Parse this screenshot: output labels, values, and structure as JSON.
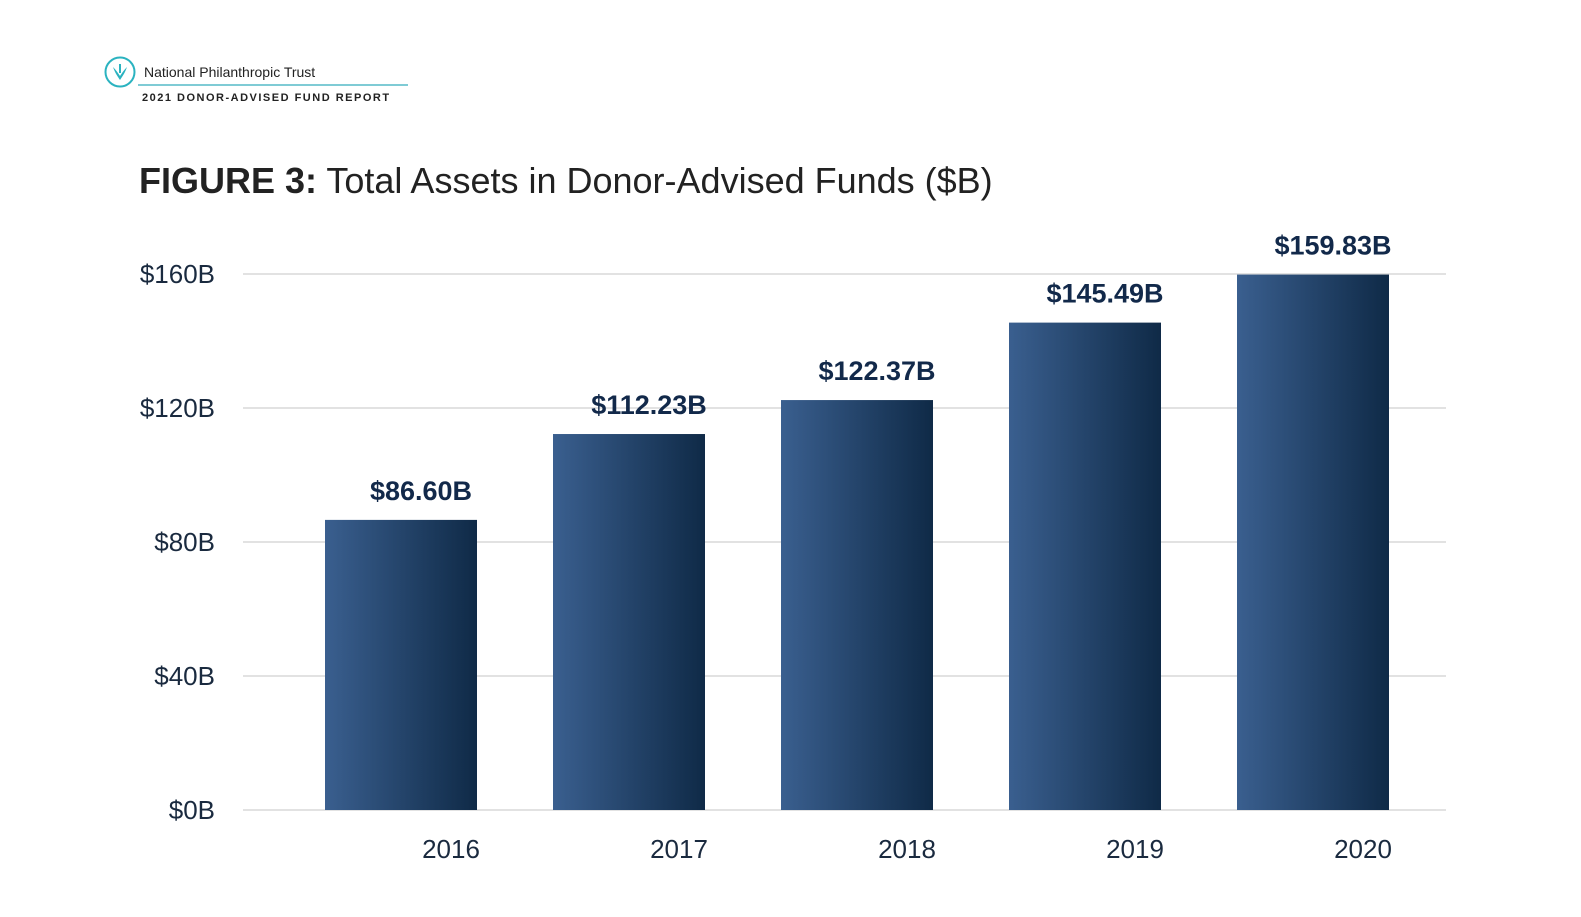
{
  "header": {
    "org_name": "National Philanthropic Trust",
    "report_name": "2021 DONOR-ADVISED FUND REPORT",
    "logo_icon": "leaf-circle-icon",
    "accent_color": "#2bb3c0"
  },
  "figure": {
    "label": "FIGURE 3:",
    "title": "Total Assets in Donor-Advised Funds ($B)"
  },
  "chart_data": {
    "type": "bar",
    "title": "Total Assets in Donor-Advised Funds ($B)",
    "xlabel": "",
    "ylabel": "",
    "categories": [
      "2016",
      "2017",
      "2018",
      "2019",
      "2020"
    ],
    "values": [
      86.6,
      112.23,
      122.37,
      145.49,
      159.83
    ],
    "value_labels": [
      "$86.60B",
      "$112.23B",
      "$122.37B",
      "$145.49B",
      "$159.83B"
    ],
    "ylim": [
      0,
      160
    ],
    "yticks": [
      0,
      40,
      80,
      120,
      160
    ],
    "ytick_labels": [
      "$0B",
      "$40B",
      "$80B",
      "$120B",
      "$160B"
    ],
    "grid": true,
    "legend": "none",
    "bar_color_light": "#3a5f8f",
    "bar_color_dark": "#0f2a47",
    "grid_color": "#d9d9d9",
    "label_color": "#1a2a3f"
  }
}
